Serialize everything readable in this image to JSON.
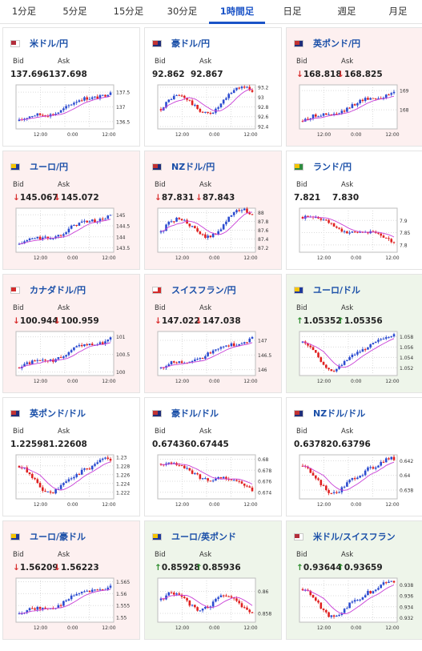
{
  "tabs": [
    {
      "label": "1分足",
      "active": false
    },
    {
      "label": "5分足",
      "active": false
    },
    {
      "label": "15分足",
      "active": false
    },
    {
      "label": "30分足",
      "active": false
    },
    {
      "label": "1時間足",
      "active": true
    },
    {
      "label": "日足",
      "active": false
    },
    {
      "label": "週足",
      "active": false
    },
    {
      "label": "月足",
      "active": false
    }
  ],
  "labels": {
    "bid": "Bid",
    "ask": "Ask"
  },
  "colors": {
    "up_candle": "#2b4bd0",
    "down_candle": "#e02020",
    "moving_average": "#c83ed6",
    "card_down_bg": "#fdf0f0",
    "card_up_bg": "#eef5ea",
    "tab_active": "#1a53c7"
  },
  "cards": [
    {
      "pair": "米ドル/円",
      "flag": "us",
      "trend": "none",
      "bid": "137.696",
      "ask": "137.698",
      "chart_data": {
        "type": "candlestick",
        "x_ticks": [
          "12:00",
          "0:00",
          "12:00"
        ],
        "y_ticks": [
          "137.5",
          "137",
          "136.5"
        ],
        "ylim": [
          136.25,
          137.75
        ],
        "shape": "rise",
        "ma": true
      }
    },
    {
      "pair": "豪ドル/円",
      "flag": "au",
      "trend": "none",
      "bid": "92.862",
      "ask": "92.867",
      "chart_data": {
        "type": "candlestick",
        "x_ticks": [
          "12:00",
          "0:00",
          "12:00"
        ],
        "y_ticks": [
          "93.2",
          "93",
          "92.8",
          "92.6",
          "92.4"
        ],
        "ylim": [
          92.35,
          93.25
        ],
        "shape": "wave",
        "ma": true
      }
    },
    {
      "pair": "英ポンド/円",
      "flag": "gb",
      "trend": "down",
      "bid": "168.818",
      "ask": "168.825",
      "chart_data": {
        "type": "candlestick",
        "x_ticks": [
          "12:00",
          "0:00",
          "12:00"
        ],
        "y_ticks": [
          "169",
          "168"
        ],
        "ylim": [
          167.0,
          169.3
        ],
        "shape": "rise",
        "ma": true
      }
    },
    {
      "pair": "ユーロ/円",
      "flag": "eu",
      "trend": "down",
      "bid": "145.067",
      "ask": "145.072",
      "chart_data": {
        "type": "candlestick",
        "x_ticks": [
          "12:00",
          "0:00",
          "12:00"
        ],
        "y_ticks": [
          "145",
          "144.5",
          "144",
          "143.5"
        ],
        "ylim": [
          143.3,
          145.3
        ],
        "shape": "rise",
        "ma": true
      }
    },
    {
      "pair": "NZドル/円",
      "flag": "nz",
      "trend": "down",
      "bid": "87.831",
      "ask": "87.843",
      "chart_data": {
        "type": "candlestick",
        "x_ticks": [
          "12:00",
          "0:00",
          "12:00"
        ],
        "y_ticks": [
          "88",
          "87.8",
          "87.6",
          "87.4",
          "87.2"
        ],
        "ylim": [
          87.1,
          88.1
        ],
        "shape": "wave",
        "ma": true
      }
    },
    {
      "pair": "ランド/円",
      "flag": "za",
      "trend": "none",
      "bid": "7.821",
      "ask": "7.830",
      "chart_data": {
        "type": "candlestick",
        "x_ticks": [
          "12:00",
          "0:00",
          "12:00"
        ],
        "y_ticks": [
          "7.9",
          "7.85",
          "7.8"
        ],
        "ylim": [
          7.77,
          7.95
        ],
        "shape": "fall",
        "ma": true
      }
    },
    {
      "pair": "カナダドル/円",
      "flag": "ca",
      "trend": "down",
      "bid": "100.944",
      "ask": "100.959",
      "chart_data": {
        "type": "candlestick",
        "x_ticks": [
          "12:00",
          "0:00",
          "12:00"
        ],
        "y_ticks": [
          "101",
          "100.5",
          "100"
        ],
        "ylim": [
          99.9,
          101.15
        ],
        "shape": "rise",
        "ma": true
      }
    },
    {
      "pair": "スイスフラン/円",
      "flag": "ch",
      "trend": "down",
      "bid": "147.022",
      "ask": "147.038",
      "chart_data": {
        "type": "candlestick",
        "x_ticks": [
          "12:00",
          "0:00",
          "12:00"
        ],
        "y_ticks": [
          "147",
          "146.5",
          "146"
        ],
        "ylim": [
          145.8,
          147.3
        ],
        "shape": "rise",
        "ma": true
      }
    },
    {
      "pair": "ユーロ/ドル",
      "flag": "eu",
      "trend": "up",
      "bid": "1.05352",
      "ask": "1.05356",
      "chart_data": {
        "type": "candlestick",
        "x_ticks": [
          "12:00",
          "0:00",
          "12:00"
        ],
        "y_ticks": [
          "1.058",
          "1.056",
          "1.054",
          "1.052"
        ],
        "ylim": [
          1.0505,
          1.059
        ],
        "shape": "vee",
        "ma": true
      }
    },
    {
      "pair": "英ポンド/ドル",
      "flag": "gb",
      "trend": "none",
      "bid": "1.22598",
      "ask": "1.22608",
      "chart_data": {
        "type": "candlestick",
        "x_ticks": [
          "12:00",
          "0:00",
          "12:00"
        ],
        "y_ticks": [
          "1.23",
          "1.228",
          "1.226",
          "1.224",
          "1.222"
        ],
        "ylim": [
          1.2205,
          1.2305
        ],
        "shape": "vee",
        "ma": true
      }
    },
    {
      "pair": "豪ドル/ドル",
      "flag": "au",
      "trend": "none",
      "bid": "0.67436",
      "ask": "0.67445",
      "chart_data": {
        "type": "candlestick",
        "x_ticks": [
          "12:00",
          "0:00",
          "12:00"
        ],
        "y_ticks": [
          "0.68",
          "0.678",
          "0.676",
          "0.674"
        ],
        "ylim": [
          0.6728,
          0.6808
        ],
        "shape": "fall",
        "ma": true
      }
    },
    {
      "pair": "NZドル/ドル",
      "flag": "nz",
      "trend": "none",
      "bid": "0.63782",
      "ask": "0.63796",
      "chart_data": {
        "type": "candlestick",
        "x_ticks": [
          "12:00",
          "0:00",
          "12:00"
        ],
        "y_ticks": [
          "0.642",
          "0.64",
          "0.638"
        ],
        "ylim": [
          0.6368,
          0.6428
        ],
        "shape": "vee",
        "ma": true
      }
    },
    {
      "pair": "ユーロ/豪ドル",
      "flag": "eu",
      "trend": "down",
      "bid": "1.56209",
      "ask": "1.56223",
      "chart_data": {
        "type": "candlestick",
        "x_ticks": [
          "12:00",
          "0:00",
          "12:00"
        ],
        "y_ticks": [
          "1.565",
          "1.56",
          "1.555",
          "1.55"
        ],
        "ylim": [
          1.548,
          1.5665
        ],
        "shape": "rise",
        "ma": true
      }
    },
    {
      "pair": "ユーロ/英ポンド",
      "flag": "eu",
      "trend": "up",
      "bid": "0.85928",
      "ask": "0.85936",
      "chart_data": {
        "type": "candlestick",
        "x_ticks": [
          "12:00",
          "0:00",
          "12:00"
        ],
        "y_ticks": [
          "0.86",
          "0.858"
        ],
        "ylim": [
          0.8572,
          0.8612
        ],
        "shape": "flat",
        "ma": true
      }
    },
    {
      "pair": "米ドル/スイスフラン",
      "flag": "us",
      "trend": "up",
      "bid": "0.93644",
      "ask": "0.93659",
      "chart_data": {
        "type": "candlestick",
        "x_ticks": [
          "12:00",
          "0:00",
          "12:00"
        ],
        "y_ticks": [
          "0.938",
          "0.936",
          "0.934",
          "0.932"
        ],
        "ylim": [
          0.9312,
          0.9392
        ],
        "shape": "vee",
        "ma": true
      }
    }
  ]
}
